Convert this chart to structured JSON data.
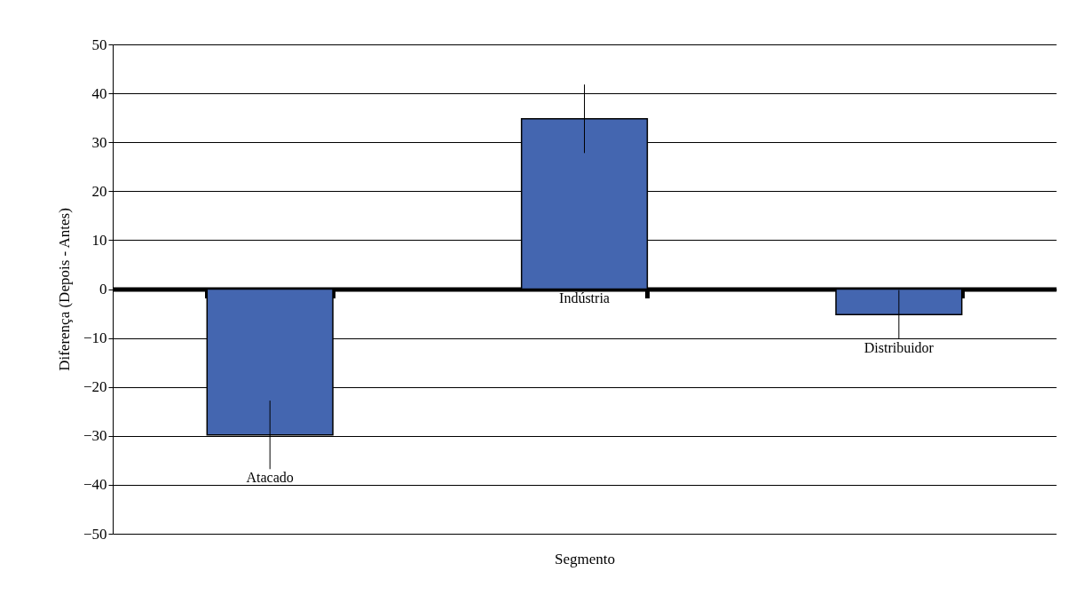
{
  "chart_data": {
    "type": "bar",
    "xlabel": "Segmento",
    "ylabel": "Diferença (Depois - Antes)",
    "categories": [
      "Atacado",
      "Indústria",
      "Distribuidor"
    ],
    "values": [
      -29.8,
      34.8,
      -5.2
    ],
    "errors": [
      7,
      7,
      5
    ],
    "color": "#4466b0",
    "ylim": [
      -50,
      50
    ],
    "yticks": [
      -50,
      -40,
      -30,
      -20,
      -10,
      0,
      10,
      20,
      30,
      40,
      50
    ],
    "grid": "y"
  }
}
